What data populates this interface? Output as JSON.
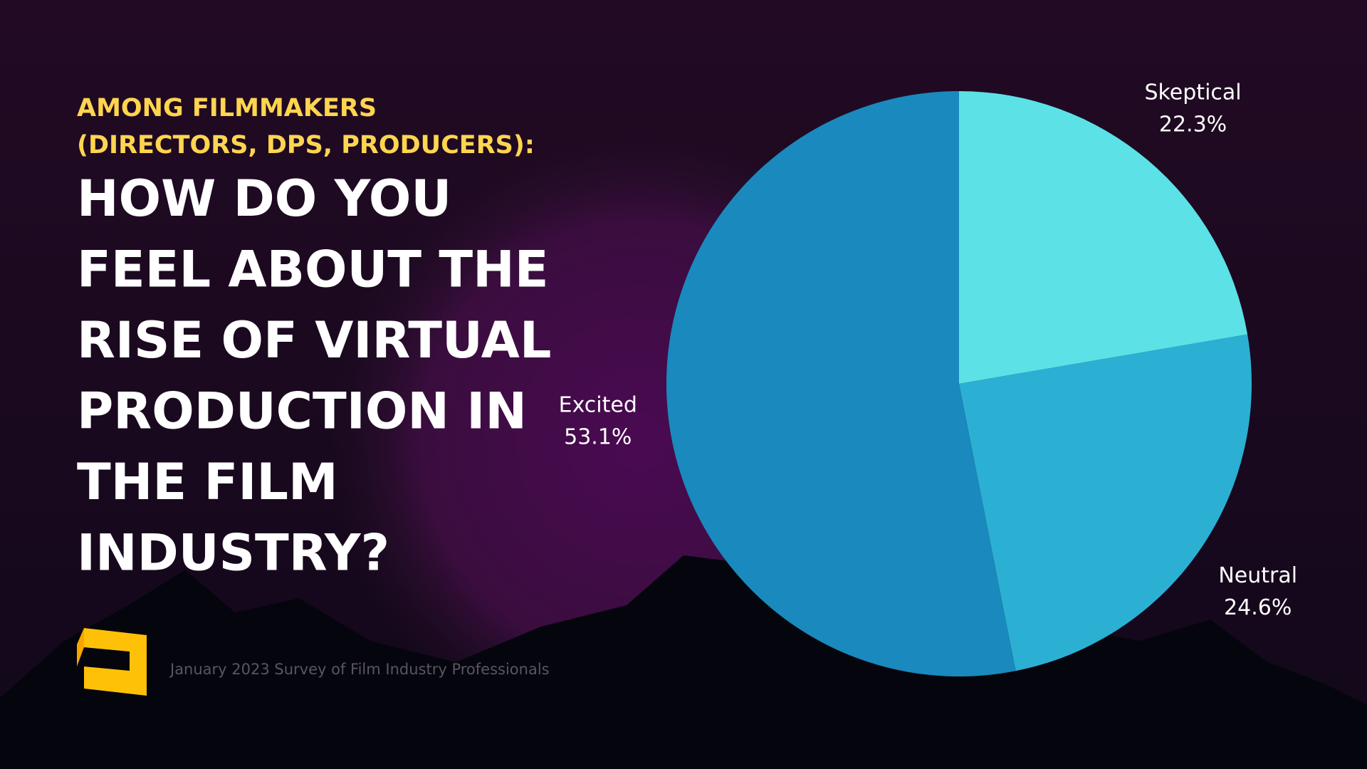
{
  "chart_data": {
    "type": "pie",
    "subtitle": [
      "AMONG FILMMAKERS",
      "(DIRECTORS, DPS, PRODUCERS):"
    ],
    "title": [
      "HOW DO YOU",
      "FEEL ABOUT THE",
      "RISE OF VIRTUAL",
      "PRODUCTION IN",
      "THE FILM",
      "INDUSTRY?"
    ],
    "categories": [
      "Skeptical",
      "Neutral",
      "Excited"
    ],
    "values": [
      22.3,
      24.6,
      53.1
    ],
    "value_labels": [
      "22.3%",
      "24.6%",
      "53.1%"
    ],
    "colors": [
      "#5ce1e6",
      "#2bb0d4",
      "#1a89bd"
    ],
    "footnote": "January 2023 Survey of Film Industry Professionals"
  }
}
